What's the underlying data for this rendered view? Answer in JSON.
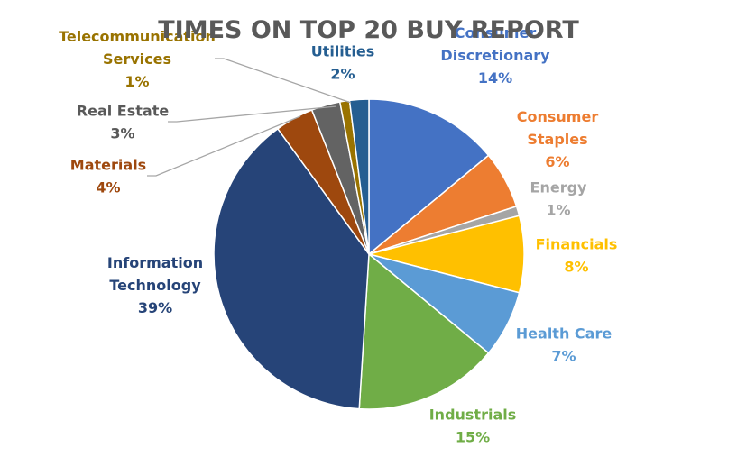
{
  "chart_data": {
    "type": "pie",
    "title": "TIMES ON TOP 20 BUY REPORT",
    "unit": "%",
    "slices": [
      {
        "name": "Consumer Discretionary",
        "label_lines": [
          "Consumer",
          "Discretionary"
        ],
        "value": 14,
        "color": "#4472C4"
      },
      {
        "name": "Consumer Staples",
        "label_lines": [
          "Consumer",
          "Staples"
        ],
        "value": 6,
        "color": "#ED7D31"
      },
      {
        "name": "Energy",
        "label_lines": [
          "Energy"
        ],
        "value": 1,
        "color": "#A5A5A5"
      },
      {
        "name": "Financials",
        "label_lines": [
          "Financials"
        ],
        "value": 8,
        "color": "#FFC000"
      },
      {
        "name": "Health Care",
        "label_lines": [
          "Health Care"
        ],
        "value": 7,
        "color": "#5B9BD5"
      },
      {
        "name": "Industrials",
        "label_lines": [
          "Industrials"
        ],
        "value": 15,
        "color": "#70AD47"
      },
      {
        "name": "Information Technology",
        "label_lines": [
          "Information",
          "Technology"
        ],
        "value": 39,
        "color": "#264478"
      },
      {
        "name": "Materials",
        "label_lines": [
          "Materials"
        ],
        "value": 4,
        "color": "#9E480E"
      },
      {
        "name": "Real Estate",
        "label_lines": [
          "Real Estate"
        ],
        "value": 3,
        "color": "#636363"
      },
      {
        "name": "Telecommunication Services",
        "label_lines": [
          "Telecommunication",
          "Services"
        ],
        "value": 1,
        "color": "#997300"
      },
      {
        "name": "Utilities",
        "label_lines": [
          "Utilities"
        ],
        "value": 2,
        "color": "#255E91"
      }
    ],
    "label_colors": {
      "Consumer Discretionary": "#4472C4",
      "Consumer Staples": "#ED7D31",
      "Energy": "#A5A5A5",
      "Financials": "#FFC000",
      "Health Care": "#5B9BD5",
      "Industrials": "#70AD47",
      "Information Technology": "#264478",
      "Materials": "#9E480E",
      "Real Estate": "#595959",
      "Telecommunication Services": "#997300",
      "Utilities": "#255E91"
    }
  }
}
